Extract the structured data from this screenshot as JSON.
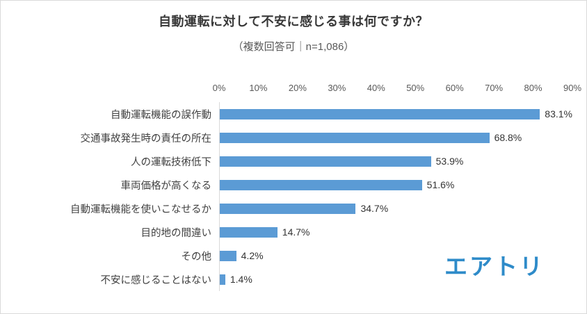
{
  "title": "自動運転に対して不安に感じる事は何ですか？",
  "subtitle": "（複数回答可｜n=1,086）",
  "logo_text": "エアトリ",
  "colors": {
    "bar": "#5B9BD5",
    "logo": "#2E8BC9",
    "axis_text": "#595959",
    "label_text": "#404040",
    "frame_border": "#d9d9d9"
  },
  "chart_data": {
    "type": "bar",
    "orientation": "horizontal",
    "title": "自動運転に対して不安に感じる事は何ですか？",
    "subtitle": "（複数回答可｜n=1,086）",
    "categories": [
      "自動運転機能の誤作動",
      "交通事故発生時の責任の所在",
      "人の運転技術低下",
      "車両価格が高くなる",
      "自動運転機能を使いこなせるか",
      "目的地の間違い",
      "その他",
      "不安に感じることはない"
    ],
    "values": [
      83.1,
      68.8,
      53.9,
      51.6,
      34.7,
      14.7,
      4.2,
      1.4
    ],
    "value_labels": [
      "83.1%",
      "68.8%",
      "53.9%",
      "51.6%",
      "34.7%",
      "14.7%",
      "4.2%",
      "1.4%"
    ],
    "xlim": [
      0,
      90
    ],
    "tick_values": [
      0,
      10,
      20,
      30,
      40,
      50,
      60,
      70,
      80,
      90
    ],
    "tick_labels": [
      "0%",
      "10%",
      "20%",
      "30%",
      "40%",
      "50%",
      "60%",
      "70%",
      "80%",
      "90%"
    ],
    "grid": false,
    "legend": false,
    "axis_position": "top"
  }
}
